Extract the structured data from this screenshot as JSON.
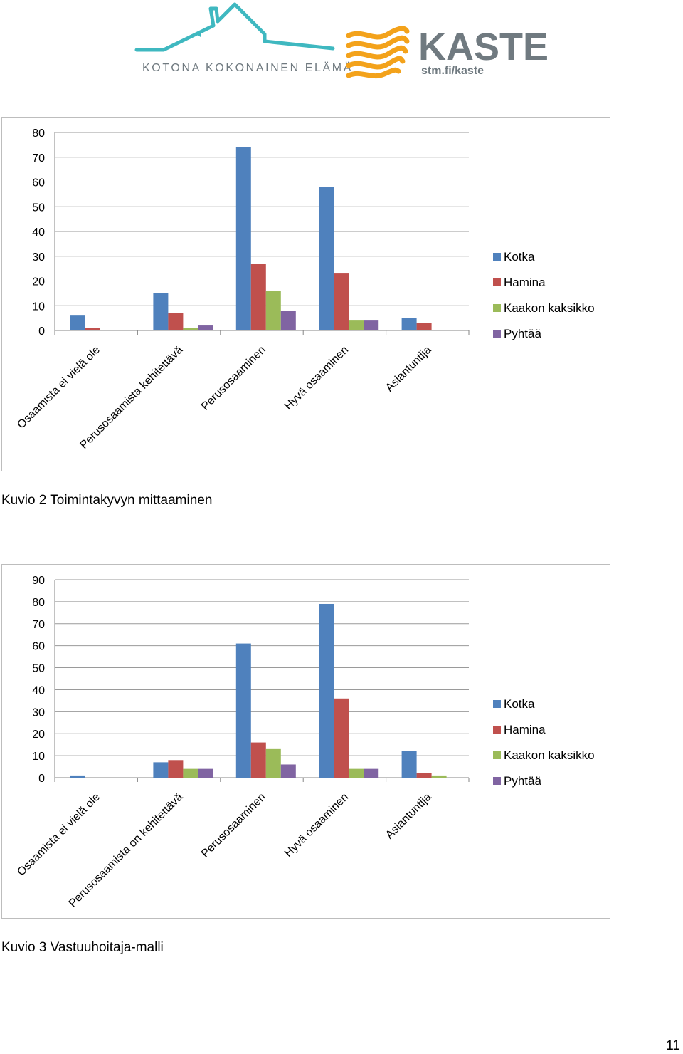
{
  "header": {
    "logo_left_text": "KOTONA KOKONAINEN ELÄMÄ",
    "logo_right_title": "KASTE",
    "logo_right_url": "stm.fi/kaste"
  },
  "colors": {
    "kotka": "#4f81bd",
    "hamina": "#c0504d",
    "kaakon_kaksikko": "#9bbb59",
    "pyhtaa": "#8064a2",
    "logo_teal": "#3fb8c0",
    "logo_gray": "#707a80",
    "logo_orange": "#f3a21b"
  },
  "captions": {
    "chart1": "Kuvio 2 Toimintakyvyn mittaaminen",
    "chart2": "Kuvio 3 Vastuuhoitaja-malli"
  },
  "page_number": "11",
  "chart_data": [
    {
      "type": "bar",
      "title": "",
      "xlabel": "",
      "ylabel": "",
      "ylim": [
        0,
        80
      ],
      "yticks": [
        0,
        10,
        20,
        30,
        40,
        50,
        60,
        70,
        80
      ],
      "grid": true,
      "legend": "right",
      "categories": [
        "Osaamista ei vielä ole",
        "Perusosaamista kehitettävä",
        "Perusosaaminen",
        "Hyvä osaaminen",
        "Asiantuntija"
      ],
      "series": [
        {
          "name": "Kotka",
          "values": [
            6,
            15,
            74,
            58,
            5
          ]
        },
        {
          "name": "Hamina",
          "values": [
            1,
            7,
            27,
            23,
            3
          ]
        },
        {
          "name": "Kaakon kaksikko",
          "values": [
            0,
            1,
            16,
            4,
            0
          ]
        },
        {
          "name": "Pyhtää",
          "values": [
            0,
            2,
            8,
            4,
            0
          ]
        }
      ]
    },
    {
      "type": "bar",
      "title": "",
      "xlabel": "",
      "ylabel": "",
      "ylim": [
        0,
        90
      ],
      "yticks": [
        0,
        10,
        20,
        30,
        40,
        50,
        60,
        70,
        80,
        90
      ],
      "grid": true,
      "legend": "right",
      "categories": [
        "Osaamista ei vielä ole",
        "Perusosaamista on kehitettävä",
        "Perusosaaminen",
        "Hyvä osaaminen",
        "Asiantuntija"
      ],
      "series": [
        {
          "name": "Kotka",
          "values": [
            1,
            7,
            61,
            79,
            12
          ]
        },
        {
          "name": "Hamina",
          "values": [
            0,
            8,
            16,
            36,
            2
          ]
        },
        {
          "name": "Kaakon kaksikko",
          "values": [
            0,
            4,
            13,
            4,
            1
          ]
        },
        {
          "name": "Pyhtää",
          "values": [
            0,
            4,
            6,
            4,
            0
          ]
        }
      ]
    }
  ]
}
